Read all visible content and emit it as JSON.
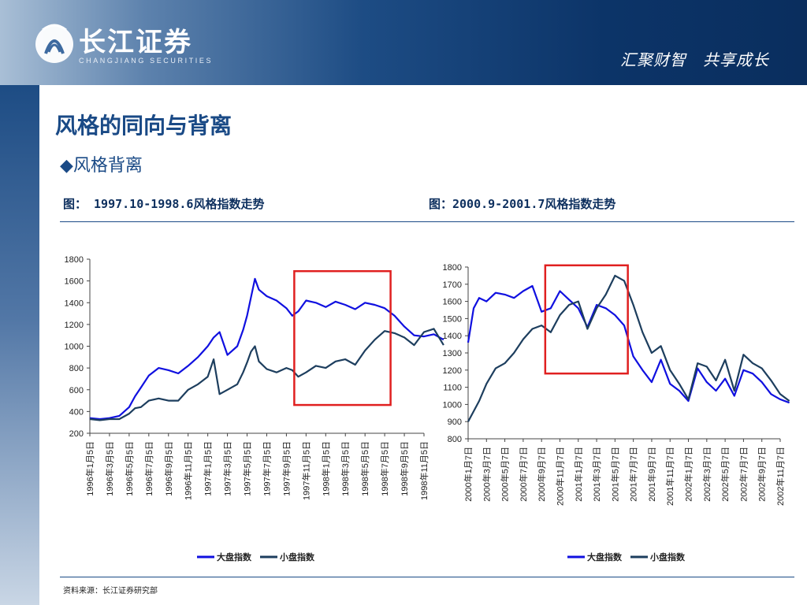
{
  "header": {
    "logo_cn": "长江证券",
    "logo_en": "CHANGJIANG SECURITIES",
    "slogan": "汇聚财智　共享成长"
  },
  "colors": {
    "header_dark": "#0c3468",
    "title": "#1a4a86",
    "large_cap": "#1010e0",
    "small_cap": "#1d3e5e",
    "highlight": "#e02020"
  },
  "page": {
    "title": "风格的同向与背离",
    "subtitle": "◆风格背离",
    "caption_left": "图：  1997.10-1998.6风格指数走势",
    "caption_right": "图：2000.9-2001.7风格指数走势",
    "source": "资料来源：长江证券研究部"
  },
  "chart_data": [
    {
      "type": "line",
      "ylim": [
        200,
        1800
      ],
      "yticks": [
        200,
        400,
        600,
        800,
        1000,
        1200,
        1400,
        1600,
        1800
      ],
      "xticks": [
        "1996年1月5日",
        "1996年3月5日",
        "1996年5月5日",
        "1996年7月5日",
        "1996年9月5日",
        "1996年11月5日",
        "1997年1月5日",
        "1997年3月5日",
        "1997年5月5日",
        "1997年7月5日",
        "1997年9月5日",
        "1997年11月5日",
        "1998年1月5日",
        "1998年3月5日",
        "1998年5月5日",
        "1998年7月5日",
        "1998年9月5日",
        "1998年11月5日"
      ],
      "grid": false,
      "legend_position": "bottom",
      "highlight_range": {
        "x": [
          10.4,
          15.3
        ],
        "y": [
          460,
          1690
        ]
      },
      "series": [
        {
          "name": "大盘指数",
          "color": "#1010e0",
          "x": [
            0,
            0.5,
            1,
            1.5,
            2,
            2.3,
            2.6,
            3,
            3.5,
            4,
            4.5,
            5,
            5.5,
            6,
            6.3,
            6.6,
            7,
            7.5,
            7.8,
            8,
            8.2,
            8.4,
            8.6,
            9,
            9.5,
            10,
            10.3,
            10.6,
            11,
            11.5,
            12,
            12.5,
            13,
            13.5,
            14,
            14.5,
            15,
            15.5,
            16,
            16.5,
            17,
            17.5,
            18
          ],
          "y": [
            340,
            330,
            340,
            360,
            440,
            540,
            620,
            730,
            800,
            780,
            750,
            820,
            900,
            1000,
            1080,
            1130,
            920,
            1000,
            1150,
            1280,
            1450,
            1620,
            1520,
            1460,
            1420,
            1350,
            1280,
            1320,
            1420,
            1400,
            1360,
            1410,
            1380,
            1340,
            1400,
            1380,
            1350,
            1280,
            1180,
            1100,
            1090,
            1110,
            1060
          ]
        },
        {
          "name": "小盘指数",
          "color": "#1d3e5e",
          "x": [
            0,
            0.5,
            1,
            1.5,
            2,
            2.3,
            2.6,
            3,
            3.5,
            4,
            4.5,
            5,
            5.5,
            6,
            6.3,
            6.6,
            7,
            7.5,
            7.8,
            8,
            8.2,
            8.4,
            8.6,
            9,
            9.5,
            10,
            10.3,
            10.6,
            11,
            11.5,
            12,
            12.5,
            13,
            13.5,
            14,
            14.5,
            15,
            15.5,
            16,
            16.5,
            17,
            17.5,
            18
          ],
          "y": [
            330,
            320,
            330,
            330,
            380,
            430,
            440,
            500,
            520,
            500,
            500,
            600,
            650,
            720,
            880,
            560,
            600,
            650,
            760,
            850,
            950,
            1000,
            860,
            790,
            760,
            800,
            780,
            720,
            760,
            820,
            800,
            860,
            880,
            830,
            960,
            1060,
            1140,
            1120,
            1080,
            1010,
            1130,
            1160,
            1010
          ]
        }
      ]
    },
    {
      "type": "line",
      "ylim": [
        800,
        1800
      ],
      "yticks": [
        800,
        900,
        1000,
        1100,
        1200,
        1300,
        1400,
        1500,
        1600,
        1700,
        1800
      ],
      "xticks": [
        "2000年1月7日",
        "2000年3月7日",
        "2000年5月7日",
        "2000年7月7日",
        "2000年9月7日",
        "2000年11月7日",
        "2001年1月7日",
        "2001年3月7日",
        "2001年5月7日",
        "2001年7月7日",
        "2001年9月7日",
        "2001年11月7日",
        "2002年1月7日",
        "2002年3月7日",
        "2002年5月7日",
        "2002年7月7日",
        "2002年9月7日",
        "2002年11月7日"
      ],
      "grid": false,
      "legend_position": "bottom",
      "highlight_range": {
        "x": [
          4.2,
          8.7
        ],
        "y": [
          1180,
          1810
        ]
      },
      "series": [
        {
          "name": "大盘指数",
          "color": "#1010e0",
          "x": [
            0,
            0.3,
            0.6,
            1,
            1.5,
            2,
            2.5,
            3,
            3.5,
            4,
            4.5,
            5,
            5.5,
            6,
            6.5,
            7,
            7.5,
            8,
            8.5,
            9,
            9.5,
            10,
            10.5,
            11,
            11.5,
            12,
            12.5,
            13,
            13.5,
            14,
            14.5,
            15,
            15.5,
            16,
            16.5,
            17,
            17.5
          ],
          "y": [
            1360,
            1560,
            1620,
            1600,
            1650,
            1640,
            1620,
            1660,
            1690,
            1540,
            1560,
            1660,
            1610,
            1560,
            1450,
            1580,
            1560,
            1520,
            1460,
            1280,
            1200,
            1130,
            1260,
            1120,
            1080,
            1020,
            1210,
            1130,
            1080,
            1150,
            1050,
            1200,
            1180,
            1130,
            1060,
            1030,
            1010
          ]
        },
        {
          "name": "小盘指数",
          "color": "#1d3e5e",
          "x": [
            0,
            0.3,
            0.6,
            1,
            1.5,
            2,
            2.5,
            3,
            3.5,
            4,
            4.5,
            5,
            5.5,
            6,
            6.5,
            7,
            7.5,
            8,
            8.5,
            9,
            9.5,
            10,
            10.5,
            11,
            11.5,
            12,
            12.5,
            13,
            13.5,
            14,
            14.5,
            15,
            15.5,
            16,
            16.5,
            17,
            17.5
          ],
          "y": [
            900,
            960,
            1020,
            1120,
            1210,
            1240,
            1300,
            1380,
            1440,
            1460,
            1420,
            1520,
            1580,
            1600,
            1440,
            1560,
            1640,
            1750,
            1720,
            1580,
            1420,
            1300,
            1340,
            1200,
            1120,
            1030,
            1240,
            1220,
            1140,
            1260,
            1080,
            1290,
            1240,
            1210,
            1140,
            1060,
            1020
          ]
        }
      ]
    }
  ]
}
